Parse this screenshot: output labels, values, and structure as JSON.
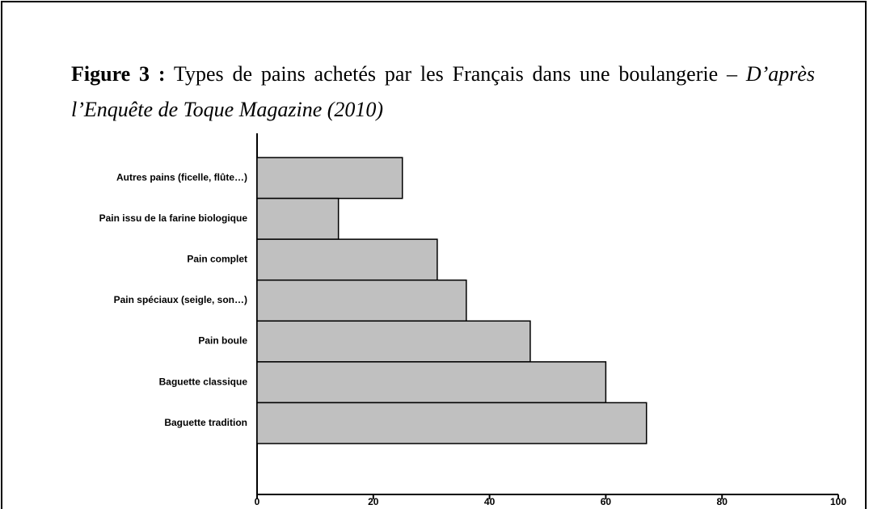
{
  "chart_data": {
    "type": "hbar",
    "title_label": "Figure 3 :",
    "title": "Types de pains achetés par les Français dans une boulangerie –",
    "source": "D’après l’Enquête de Toque Magazine (2010)",
    "categories": [
      "Autres pains (ficelle, flûte…)",
      "Pain issu de la farine biologique",
      "Pain complet",
      "Pain spéciaux (seigle, son…)",
      "Pain boule",
      "Baguette classique",
      "Baguette tradition"
    ],
    "values": [
      25,
      14,
      31,
      36,
      47,
      60,
      67
    ],
    "color": "#c0c0c0",
    "xlim": [
      0,
      100
    ],
    "xticks": [
      0,
      20,
      40,
      60,
      80,
      100
    ]
  }
}
